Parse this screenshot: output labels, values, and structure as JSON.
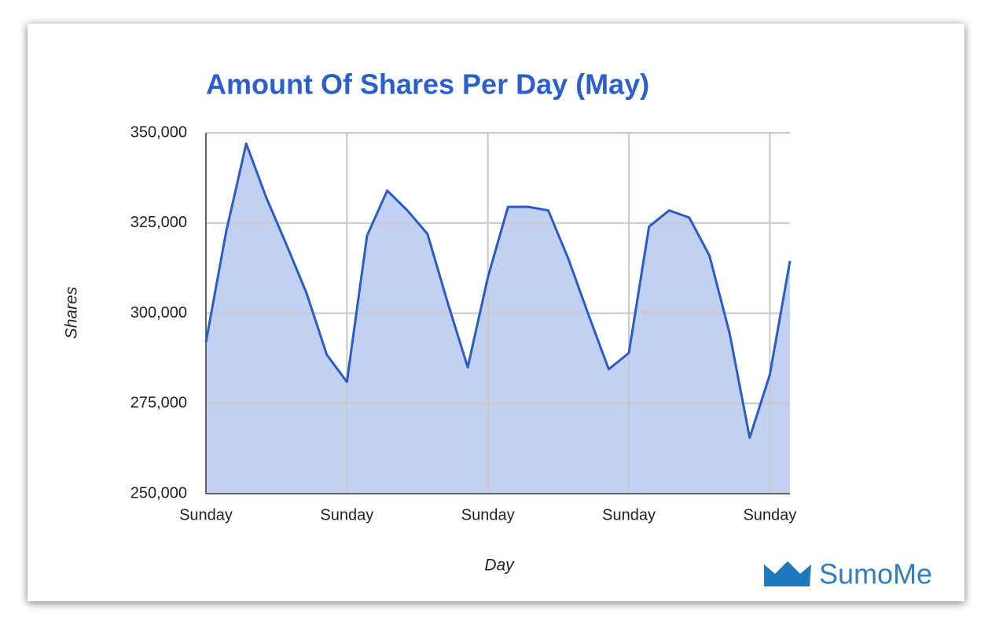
{
  "chart_data": {
    "type": "area",
    "title": "Amount Of Shares Per Day (May)",
    "x_label": "Day",
    "y_label": "Shares",
    "categories": [
      "Sunday",
      null,
      null,
      null,
      null,
      null,
      null,
      "Sunday",
      null,
      null,
      null,
      null,
      null,
      null,
      "Sunday",
      null,
      null,
      null,
      null,
      null,
      null,
      "Sunday",
      null,
      null,
      null,
      null,
      null,
      null,
      "Sunday",
      null
    ],
    "values": [
      292000,
      322500,
      347000,
      332000,
      319000,
      305500,
      288500,
      281000,
      321500,
      334000,
      328500,
      322000,
      303000,
      285000,
      310000,
      329500,
      329500,
      328500,
      315000,
      299500,
      284500,
      289000,
      324000,
      328500,
      326500,
      316000,
      294500,
      265500,
      283000,
      314500
    ],
    "color": "#2a5bc9",
    "fill": "#c2d1f1",
    "ylim": [
      250000,
      350000
    ],
    "yticks": [
      {
        "value": 250000,
        "label": "250,000"
      },
      {
        "value": 275000,
        "label": "275,000"
      },
      {
        "value": 300000,
        "label": "300,000"
      },
      {
        "value": 325000,
        "label": "325,000"
      },
      {
        "value": 350000,
        "label": "350,000"
      }
    ],
    "grid": true
  },
  "logo_text": "SumoMe"
}
